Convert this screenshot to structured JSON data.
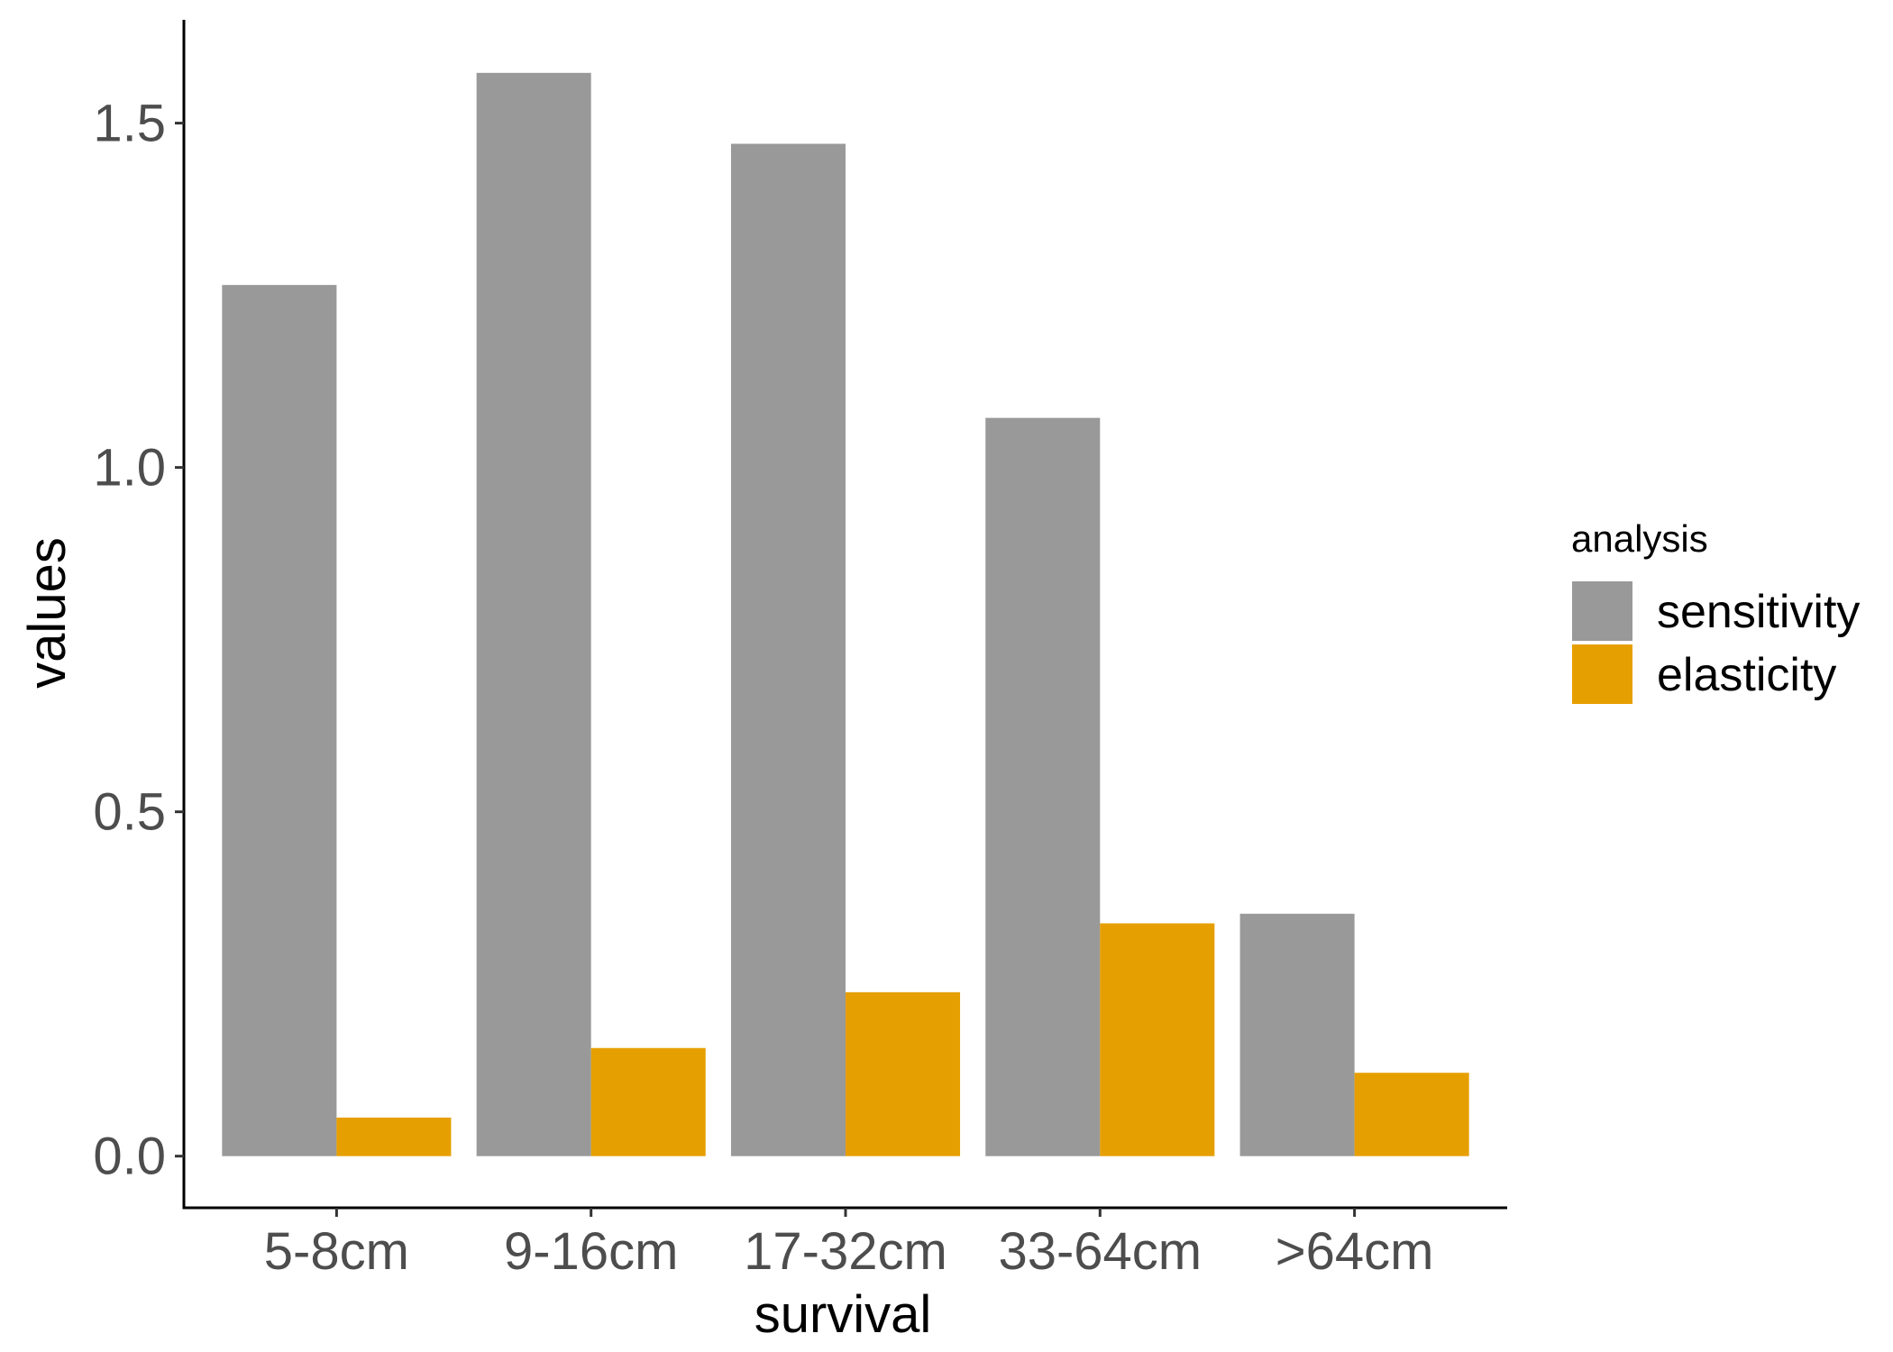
{
  "chart_data": {
    "type": "bar",
    "title": "",
    "xlabel": "survival",
    "ylabel": "values",
    "categories": [
      "5-8cm",
      "9-16cm",
      "17-32cm",
      "33-64cm",
      ">64cm"
    ],
    "series": [
      {
        "name": "sensitivity",
        "color": "#999999",
        "values": [
          1.265,
          1.573,
          1.47,
          1.072,
          0.352
        ]
      },
      {
        "name": "elasticity",
        "color": "#E69F00",
        "values": [
          0.056,
          0.157,
          0.238,
          0.338,
          0.121
        ]
      }
    ],
    "ylim": [
      -0.075,
      1.65
    ],
    "yticks": [
      0.0,
      0.5,
      1.0,
      1.5
    ],
    "ytick_labels": [
      "0.0",
      "0.5",
      "1.0",
      "1.5"
    ],
    "grid": false,
    "legend": {
      "title": "analysis",
      "position": "right"
    }
  }
}
